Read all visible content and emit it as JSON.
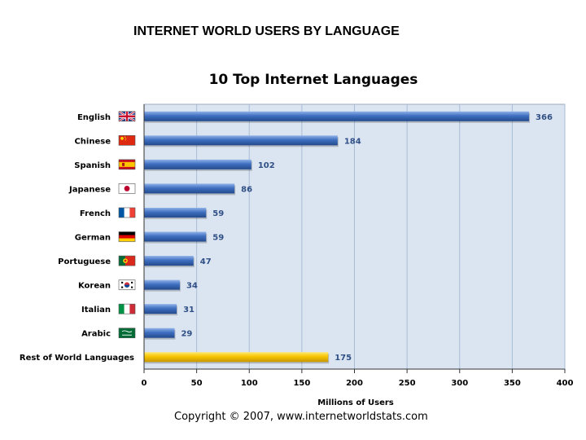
{
  "header": {
    "title": "INTERNET WORLD USERS BY LANGUAGE"
  },
  "footer": {
    "copyright": "Copyright © 2007, www.internetworldstats.com"
  },
  "colors": {
    "bar": "#3f6fc0",
    "highlight_bar": "#f5c400",
    "plot_bg": "#dbe5f1",
    "grid": "#a9bcd6",
    "value_text": "#2f4f86"
  },
  "chart_data": {
    "type": "bar",
    "orientation": "horizontal",
    "title": "10 Top Internet Languages",
    "xlabel": "Millions of Users",
    "ylabel": "",
    "xlim": [
      0,
      400
    ],
    "xticks": [
      0,
      50,
      100,
      150,
      200,
      250,
      300,
      350,
      400
    ],
    "grid": true,
    "categories": [
      "English",
      "Chinese",
      "Spanish",
      "Japanese",
      "French",
      "German",
      "Portuguese",
      "Korean",
      "Italian",
      "Arabic",
      "Rest of World Languages"
    ],
    "values": [
      366,
      184,
      102,
      86,
      59,
      59,
      47,
      34,
      31,
      29,
      175
    ],
    "flags": [
      "uk-flag-icon",
      "china-flag-icon",
      "spain-flag-icon",
      "japan-flag-icon",
      "france-flag-icon",
      "germany-flag-icon",
      "portugal-flag-icon",
      "korea-flag-icon",
      "italy-flag-icon",
      "saudi-flag-icon",
      ""
    ],
    "highlight": "Rest of World Languages"
  }
}
